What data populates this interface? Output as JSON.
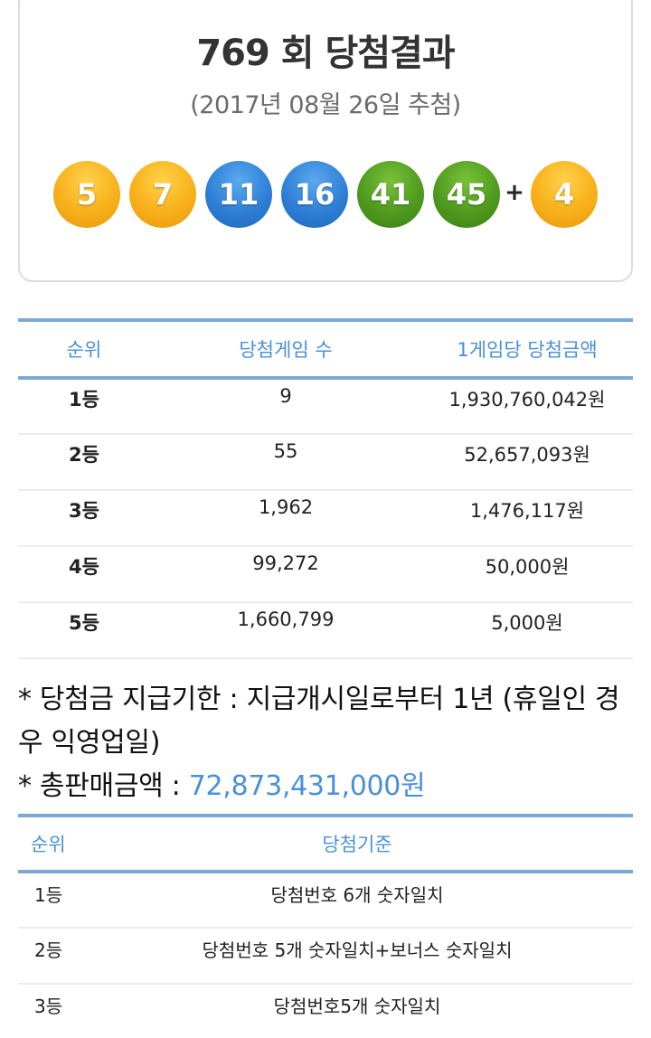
{
  "header": {
    "title": "769 회 당첨결과",
    "date": "(2017년 08월 26일 추첨)"
  },
  "winning_numbers": [
    {
      "value": "5",
      "color": "yellow"
    },
    {
      "value": "7",
      "color": "yellow"
    },
    {
      "value": "11",
      "color": "blue"
    },
    {
      "value": "16",
      "color": "blue"
    },
    {
      "value": "41",
      "color": "green"
    },
    {
      "value": "45",
      "color": "green"
    }
  ],
  "plus": "+",
  "bonus_number": {
    "value": "4",
    "color": "yellow"
  },
  "ball_colors": {
    "yellow": "#f7b01a",
    "blue": "#2f7fd6",
    "green": "#4f9a1f"
  },
  "prize_table": {
    "headers": [
      "순위",
      "당첨게임 수",
      "1게임당 당첨금액"
    ],
    "rows": [
      {
        "rank": "1등",
        "count": "9",
        "amount": "1,930,760,042원"
      },
      {
        "rank": "2등",
        "count": "55",
        "amount": "52,657,093원"
      },
      {
        "rank": "3등",
        "count": "1,962",
        "amount": "1,476,117원"
      },
      {
        "rank": "4등",
        "count": "99,272",
        "amount": "50,000원"
      },
      {
        "rank": "5등",
        "count": "1,660,799",
        "amount": "5,000원"
      }
    ]
  },
  "notes": {
    "deadline_label": "* 당첨금 지급기한",
    "deadline_sep": " : ",
    "deadline_text": "지급개시일로부터 1년 (휴일인 경우 익영업일)",
    "sales_label": "* 총판매금액",
    "sales_sep": " : ",
    "sales_value": "72,873,431,000원"
  },
  "criteria_table": {
    "headers": [
      "순위",
      "당첨기준"
    ],
    "rows": [
      {
        "rank": "1등",
        "criteria": "당첨번호 6개 숫자일치"
      },
      {
        "rank": "2등",
        "criteria": "당첨번호 5개 숫자일치+보너스 숫자일치"
      },
      {
        "rank": "3등",
        "criteria": "당첨번호5개 숫자일치"
      }
    ]
  },
  "accent_color": "#4a90d9"
}
